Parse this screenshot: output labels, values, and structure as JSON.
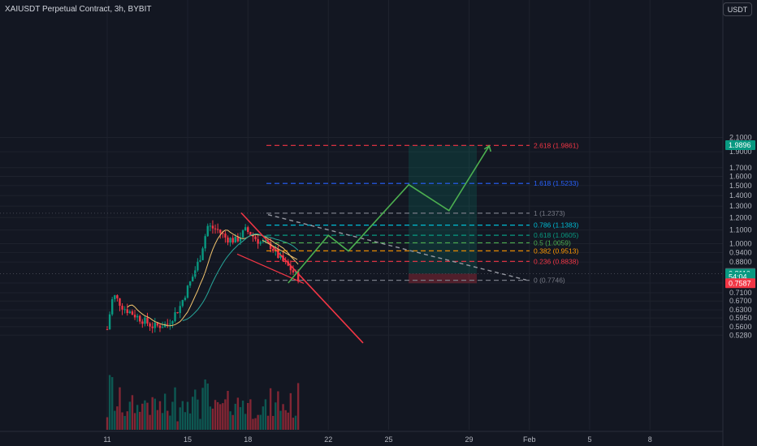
{
  "header": {
    "symbol_title": "XAIUSDT Perpetual Contract, 3h, BYBIT",
    "currency": "USDT"
  },
  "chart_data": {
    "type": "candlestick",
    "y_axis_ticks": [
      "2.1000",
      "1.9000",
      "1.7000",
      "1.6000",
      "1.5000",
      "1.4000",
      "1.3000",
      "1.2000",
      "1.1000",
      "1.0000",
      "0.9400",
      "0.8800",
      "0.7600",
      "0.7100",
      "0.6700",
      "0.6300",
      "0.5950",
      "0.5600",
      "0.5280"
    ],
    "x_axis_ticks": [
      "11",
      "15",
      "18",
      "22",
      "25",
      "29",
      "Feb",
      "5",
      "8"
    ],
    "fib_levels": [
      {
        "label": "0 (0.7746)",
        "value": 0.7746,
        "color": "#787b86"
      },
      {
        "label": "0.236 (0.8838)",
        "value": 0.8838,
        "color": "#f23645"
      },
      {
        "label": "0.382 (0.9513)",
        "value": 0.9513,
        "color": "#ff9800"
      },
      {
        "label": "0.5 (1.0059)",
        "value": 1.0059,
        "color": "#4caf50"
      },
      {
        "label": "0.618 (1.0605)",
        "value": 1.0605,
        "color": "#089981"
      },
      {
        "label": "0.786 (1.1383)",
        "value": 1.1383,
        "color": "#00bcd4"
      },
      {
        "label": "1 (1.2373)",
        "value": 1.2373,
        "color": "#787b86"
      },
      {
        "label": "1.618 (1.5233)",
        "value": 1.5233,
        "color": "#2962ff"
      },
      {
        "label": "2.618 (1.9861)",
        "value": 1.9861,
        "color": "#f23645"
      }
    ],
    "price_badges": [
      {
        "text": "1.9896",
        "value": 1.9896,
        "color": "#089981"
      },
      {
        "text": "0.8148",
        "value": 0.8148,
        "color": "#5d606b"
      },
      {
        "text": "0.8110",
        "value": 0.811,
        "color": "#089981"
      },
      {
        "text": "54:04",
        "value": 0.793,
        "color": "#089981"
      },
      {
        "text": "0.7587",
        "value": 0.7587,
        "color": "#f23645"
      }
    ],
    "projection_path": [
      {
        "date": "Jan 20",
        "price": 0.76
      },
      {
        "date": "Jan 22",
        "price": 1.06
      },
      {
        "date": "Jan 23",
        "price": 0.95
      },
      {
        "date": "Jan 26",
        "price": 1.51
      },
      {
        "date": "Jan 28",
        "price": 1.26
      },
      {
        "date": "Jan 30",
        "price": 1.98
      }
    ],
    "colors": {
      "up": "#089981",
      "down": "#f23645",
      "projection": "#4caf50",
      "ma_fast": "#f0c36d",
      "ma_slow": "#26a69a"
    }
  }
}
